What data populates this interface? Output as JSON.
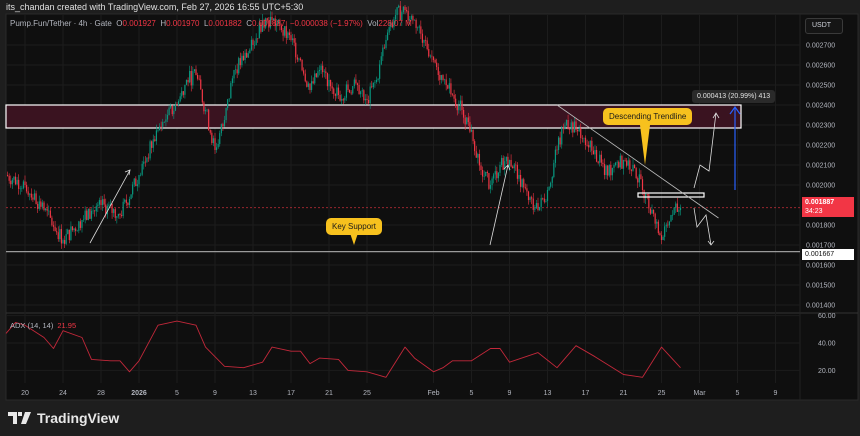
{
  "credit": "its_chandan created with TradingView.com, Feb 27, 2026 16:55 UTC+5:30",
  "legend": {
    "symbol": "Pump.Fun/Tether · 4h · Gate",
    "o_label": "O",
    "o": "0.001927",
    "h_label": "H",
    "h": "0.001970",
    "l_label": "L",
    "l": "0.001882",
    "c_label": "C",
    "c": "0.001887",
    "change": "−0.000038 (−1.97%)",
    "vol_label": "Vol",
    "vol": "228.07 M"
  },
  "currency": "USDT",
  "last_price": "0.001887",
  "countdown": "34:23",
  "support_label": "0.001667",
  "adx": {
    "label": "ADX (14, 14)",
    "value": "21.95"
  },
  "annotations": {
    "trendline": "Descending Trendline",
    "support": "Key Support",
    "measure": "0.000413 (20.99%) 413"
  },
  "logo": "TradingView",
  "colors": {
    "up": "#089981",
    "down": "#f23645",
    "adx": "#c2283a",
    "zone": "#3a1320",
    "measure_arrow": "#2962ff",
    "callout": "#f7c11e"
  },
  "chart_data": {
    "type": "candlestick",
    "price_axis": {
      "ticks": [
        "0.002700",
        "0.002600",
        "0.002500",
        "0.002400",
        "0.002300",
        "0.002200",
        "0.002100",
        "0.002000",
        "0.001800",
        "0.001700",
        "0.001600",
        "0.001500",
        "0.001400"
      ],
      "range": [
        0.0014,
        0.0027
      ]
    },
    "time_axis": {
      "ticks": [
        [
          "2025-12-20",
          "20"
        ],
        [
          "2025-12-24",
          "24"
        ],
        [
          "2025-12-28",
          "28"
        ],
        [
          "2026-01-01",
          "2026"
        ],
        [
          "2026-01-05",
          "5"
        ],
        [
          "2026-01-09",
          "9"
        ],
        [
          "2026-01-13",
          "13"
        ],
        [
          "2026-01-17",
          "17"
        ],
        [
          "2026-01-21",
          "21"
        ],
        [
          "2026-01-25",
          "25"
        ],
        [
          "2026-02-01",
          "Feb"
        ],
        [
          "2026-02-05",
          "5"
        ],
        [
          "2026-02-09",
          "9"
        ],
        [
          "2026-02-13",
          "13"
        ],
        [
          "2026-02-17",
          "17"
        ],
        [
          "2026-02-21",
          "21"
        ],
        [
          "2026-02-25",
          "25"
        ],
        [
          "2026-03-01",
          "Mar"
        ],
        [
          "2026-03-05",
          "5"
        ],
        [
          "2026-03-09",
          "9"
        ]
      ]
    },
    "closes": [
      [
        "2025-12-18",
        0.00205
      ],
      [
        "2025-12-20",
        0.002
      ],
      [
        "2025-12-22",
        0.001875
      ],
      [
        "2025-12-24",
        0.001725
      ],
      [
        "2025-12-26",
        0.001825
      ],
      [
        "2025-12-28",
        0.0019
      ],
      [
        "2025-12-30",
        0.00185
      ],
      [
        "2026-01-01",
        0.00205
      ],
      [
        "2026-01-03",
        0.002275
      ],
      [
        "2026-01-04",
        0.00235
      ],
      [
        "2026-01-05",
        0.0024
      ],
      [
        "2026-01-06",
        0.002525
      ],
      [
        "2026-01-07",
        0.00255
      ],
      [
        "2026-01-08",
        0.002375
      ],
      [
        "2026-01-09",
        0.002175
      ],
      [
        "2026-01-10",
        0.002325
      ],
      [
        "2026-01-11",
        0.002575
      ],
      [
        "2026-01-12",
        0.002625
      ],
      [
        "2026-01-13",
        0.0027
      ],
      [
        "2026-01-14",
        0.002825
      ],
      [
        "2026-01-15",
        0.002825
      ],
      [
        "2026-01-16",
        0.002775
      ],
      [
        "2026-01-17",
        0.002725
      ],
      [
        "2026-01-18",
        0.002625
      ],
      [
        "2026-01-19",
        0.002475
      ],
      [
        "2026-01-20",
        0.002575
      ],
      [
        "2026-01-21",
        0.002525
      ],
      [
        "2026-01-22",
        0.00245
      ],
      [
        "2026-01-23",
        0.002475
      ],
      [
        "2026-01-24",
        0.0025
      ],
      [
        "2026-01-25",
        0.002425
      ],
      [
        "2026-01-26",
        0.002525
      ],
      [
        "2026-01-27",
        0.002725
      ],
      [
        "2026-01-28",
        0.00285
      ],
      [
        "2026-01-29",
        0.002875
      ],
      [
        "2026-01-30",
        0.002825
      ],
      [
        "2026-01-31",
        0.002725
      ],
      [
        "2026-02-01",
        0.002625
      ],
      [
        "2026-02-02",
        0.002525
      ],
      [
        "2026-02-03",
        0.00245
      ],
      [
        "2026-02-04",
        0.002375
      ],
      [
        "2026-02-05",
        0.002275
      ],
      [
        "2026-02-06",
        0.002075
      ],
      [
        "2026-02-07",
        0.002
      ],
      [
        "2026-02-08",
        0.0021
      ],
      [
        "2026-02-09",
        0.002125
      ],
      [
        "2026-02-10",
        0.00205
      ],
      [
        "2026-02-11",
        0.001925
      ],
      [
        "2026-02-12",
        0.001875
      ],
      [
        "2026-02-13",
        0.001975
      ],
      [
        "2026-02-14",
        0.002175
      ],
      [
        "2026-02-15",
        0.002325
      ],
      [
        "2026-02-16",
        0.002275
      ],
      [
        "2026-02-17",
        0.0022
      ],
      [
        "2026-02-18",
        0.002175
      ],
      [
        "2026-02-19",
        0.00205
      ],
      [
        "2026-02-20",
        0.0021
      ],
      [
        "2026-02-21",
        0.002125
      ],
      [
        "2026-02-22",
        0.0021
      ],
      [
        "2026-02-23",
        0.001975
      ],
      [
        "2026-02-24",
        0.001875
      ],
      [
        "2026-02-25",
        0.001725
      ],
      [
        "2026-02-26",
        0.00185
      ],
      [
        "2026-02-27",
        0.001887
      ]
    ],
    "levels": {
      "resistance_zone": [
        0.002285,
        0.0024
      ],
      "key_support": 0.001667,
      "breakout_box": [
        0.00194,
        0.00196
      ]
    },
    "trendline": [
      [
        "2026-02-14",
        0.0024
      ],
      [
        "2026-03-03",
        0.001835
      ]
    ],
    "adx_axis": {
      "ticks": [
        "60.00",
        "40.00",
        "20.00"
      ],
      "range": [
        10,
        62
      ]
    },
    "adx_series": [
      [
        "2025-12-18",
        47
      ],
      [
        "2025-12-19",
        55
      ],
      [
        "2025-12-20",
        53
      ],
      [
        "2025-12-22",
        44
      ],
      [
        "2025-12-23",
        36
      ],
      [
        "2025-12-24",
        49
      ],
      [
        "2025-12-26",
        44
      ],
      [
        "2025-12-27",
        28
      ],
      [
        "2025-12-29",
        27
      ],
      [
        "2025-12-30",
        27
      ],
      [
        "2025-12-31",
        19
      ],
      [
        "2026-01-01",
        27
      ],
      [
        "2026-01-03",
        53
      ],
      [
        "2026-01-05",
        56
      ],
      [
        "2026-01-07",
        53
      ],
      [
        "2026-01-08",
        37
      ],
      [
        "2026-01-10",
        23
      ],
      [
        "2026-01-12",
        22
      ],
      [
        "2026-01-14",
        26
      ],
      [
        "2026-01-15",
        37
      ],
      [
        "2026-01-17",
        34
      ],
      [
        "2026-01-18",
        34
      ],
      [
        "2026-01-19",
        25
      ],
      [
        "2026-01-20",
        29
      ],
      [
        "2026-01-22",
        28
      ],
      [
        "2026-01-23",
        20
      ],
      [
        "2026-01-25",
        19
      ],
      [
        "2026-01-27",
        15
      ],
      [
        "2026-01-29",
        37
      ],
      [
        "2026-01-30",
        29
      ],
      [
        "2026-02-01",
        19
      ],
      [
        "2026-02-02",
        22
      ],
      [
        "2026-02-03",
        27
      ],
      [
        "2026-02-05",
        27
      ],
      [
        "2026-02-07",
        36
      ],
      [
        "2026-02-08",
        36
      ],
      [
        "2026-02-09",
        26
      ],
      [
        "2026-02-12",
        33
      ],
      [
        "2026-02-14",
        22
      ],
      [
        "2026-02-16",
        38
      ],
      [
        "2026-02-17",
        34
      ],
      [
        "2026-02-18",
        30
      ],
      [
        "2026-02-21",
        17
      ],
      [
        "2026-02-23",
        15
      ],
      [
        "2026-02-25",
        37
      ],
      [
        "2026-02-27",
        21.95
      ]
    ]
  }
}
